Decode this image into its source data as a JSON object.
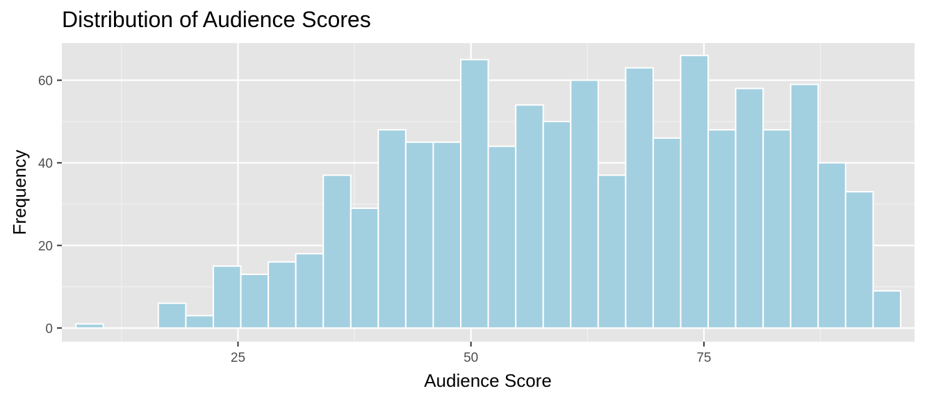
{
  "chart_data": {
    "type": "histogram",
    "title": "Distribution of Audience Scores",
    "xlabel": "Audience Score",
    "ylabel": "Frequency",
    "xlim": [
      6.1,
      97.6
    ],
    "ylim": [
      -3.3,
      69
    ],
    "x_ticks": [
      25,
      50,
      75
    ],
    "y_ticks": [
      0,
      20,
      40,
      60
    ],
    "bin_width": 2.95,
    "bin_centers": [
      9.08,
      12.03,
      14.98,
      17.93,
      20.88,
      23.83,
      26.78,
      29.73,
      32.68,
      35.63,
      38.58,
      41.53,
      44.48,
      47.43,
      50.38,
      53.33,
      56.28,
      59.23,
      62.18,
      65.13,
      68.08,
      71.03,
      73.98,
      76.93,
      79.88,
      82.83,
      85.78,
      88.73,
      91.68,
      94.63
    ],
    "values": [
      1,
      0,
      0,
      6,
      3,
      15,
      13,
      16,
      18,
      37,
      29,
      48,
      45,
      45,
      65,
      44,
      54,
      50,
      60,
      37,
      63,
      46,
      66,
      48,
      58,
      48,
      59,
      40,
      33,
      9
    ],
    "fill_color": "#a3d0e0",
    "outline_color": "#ffffff",
    "panel_color": "#e5e5e5",
    "grid": true
  }
}
